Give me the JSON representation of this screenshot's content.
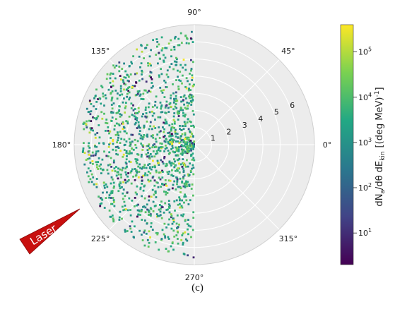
{
  "chart_data": {
    "type": "scatter",
    "projection": "polar",
    "angle_ticks": [
      "0°",
      "45°",
      "90°",
      "135°",
      "180°",
      "225°",
      "270°",
      "315°"
    ],
    "angle_tick_values_deg": [
      0,
      45,
      90,
      135,
      180,
      225,
      270,
      315
    ],
    "radial_ticks": [
      "1",
      "2",
      "3",
      "4",
      "5",
      "6"
    ],
    "radial_tick_values": [
      1,
      2,
      3,
      4,
      5,
      6
    ],
    "rlim": [
      0,
      7
    ],
    "grid": true,
    "theta_range_of_points_deg": [
      90,
      270
    ],
    "point_count_approx": 1600,
    "color_scale": "viridis, logarithmic",
    "colorbar": {
      "label": "dN",
      "label_sub_a": "a",
      "label_mid": "/dθ dE",
      "label_sub_kin": "kin",
      "label_units": "[(deg MeV)",
      "label_sup": "-1",
      "label_close": "]",
      "ticks": [
        "10",
        "10",
        "10",
        "10",
        "10"
      ],
      "tick_exponents": [
        "1",
        "2",
        "3",
        "4",
        "5"
      ],
      "tick_values": [
        10,
        100,
        1000,
        10000,
        100000
      ],
      "range": [
        2,
        400000
      ],
      "placement": "right"
    },
    "annotation": "Laser",
    "annotation_color": "#c8100f"
  },
  "caption": "(c)",
  "colors": {
    "polar_background": "#ececec",
    "grid": "#ffffff",
    "viridis": [
      "#440154",
      "#414487",
      "#2a788e",
      "#22a884",
      "#7ad151",
      "#fde725"
    ]
  }
}
